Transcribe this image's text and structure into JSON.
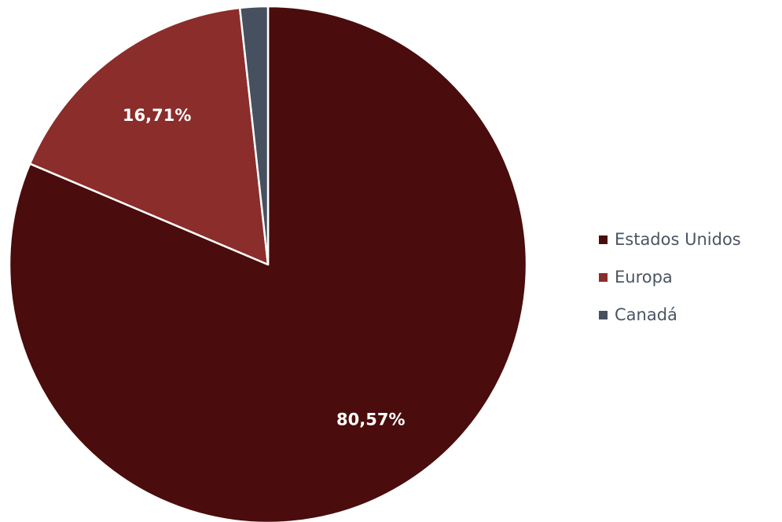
{
  "chart_data": {
    "type": "pie",
    "title": "",
    "categories": [
      "Estados Unidos",
      "Europa",
      "Canadá"
    ],
    "values": [
      80.57,
      16.71,
      1.72
    ],
    "data_labels": [
      "80,57%",
      "16,71%",
      ""
    ],
    "colors": [
      "#4a0c0c",
      "#8b2d2b",
      "#46505f"
    ],
    "start_angle_deg": 0,
    "direction": "clockwise",
    "legend_position": "right"
  }
}
